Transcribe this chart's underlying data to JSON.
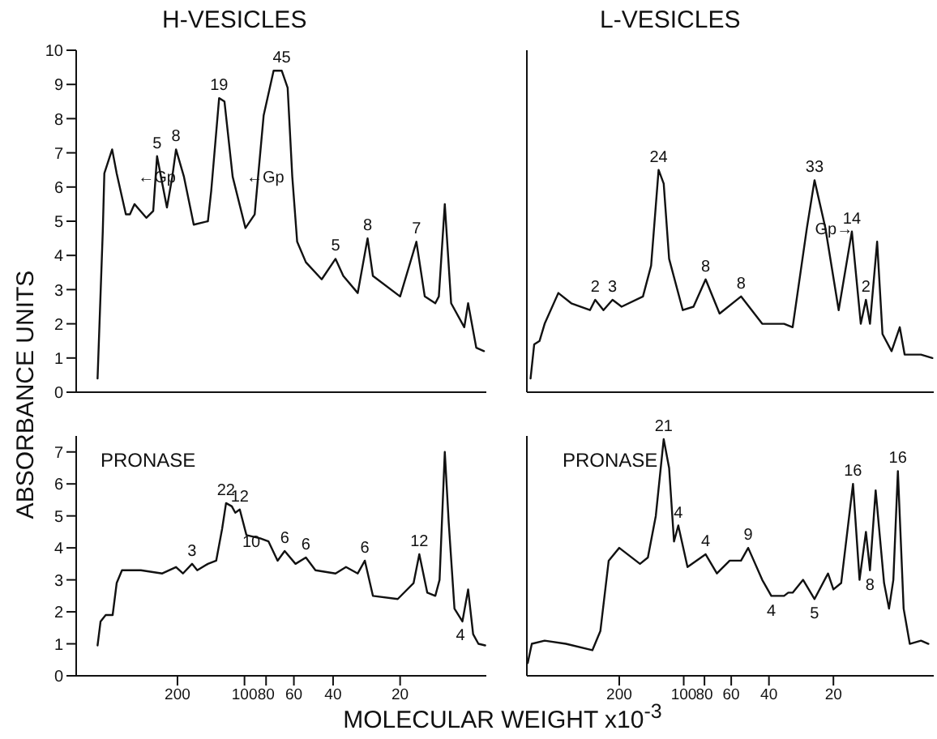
{
  "chart_data": [
    {
      "type": "line",
      "title": "H-VESICLES",
      "ylabel": "ABSORBANCE UNITS",
      "tick_labels": "y",
      "log": "x",
      "marker": "none",
      "line_style": "solid",
      "xlim": [
        570,
        8.2
      ],
      "ylim": [
        0,
        10
      ],
      "yticks": [
        0,
        1,
        2,
        3,
        4,
        5,
        6,
        7,
        8,
        9,
        10
      ],
      "xticks": [
        200,
        100,
        80,
        60,
        40,
        20
      ],
      "series": [
        {
          "color": "#111111",
          "x": [
            457,
            433,
            426,
            393,
            375,
            341,
            327,
            312,
            276,
            257,
            247,
            234,
            223,
            211,
            203,
            187,
            169,
            146,
            141,
            130,
            123,
            113,
            99,
            90,
            82,
            74,
            68,
            64,
            61,
            58,
            53,
            45,
            39,
            36,
            31,
            28,
            26.5,
            20,
            16.9,
            15.5,
            13.9,
            13.4,
            12.6,
            11.8,
            10.3,
            9.9,
            9.1,
            8.4
          ],
          "values": [
            0.4,
            4.7,
            6.4,
            7.1,
            6.4,
            5.2,
            5.2,
            5.5,
            5.1,
            5.3,
            6.9,
            6.1,
            5.4,
            6.3,
            7.1,
            6.3,
            4.9,
            5.0,
            5.9,
            8.6,
            8.5,
            6.3,
            4.8,
            5.2,
            8.1,
            9.4,
            9.4,
            8.9,
            6.3,
            4.4,
            3.8,
            3.3,
            3.9,
            3.4,
            2.9,
            4.5,
            3.4,
            2.8,
            4.4,
            2.8,
            2.6,
            2.8,
            5.5,
            2.6,
            1.9,
            2.6,
            1.3,
            1.2
          ]
        }
      ],
      "annotations": [
        {
          "text": "5",
          "x": 247,
          "y": 6.9
        },
        {
          "text": "8",
          "x": 203,
          "y": 7.1
        },
        {
          "text": "←Gp",
          "x": 187,
          "y": 6.3
        },
        {
          "text": "19",
          "x": 130,
          "y": 8.6
        },
        {
          "text": "45",
          "x": 68,
          "y": 9.4
        },
        {
          "text": "←Gp",
          "x": 61,
          "y": 6.3
        },
        {
          "text": "5",
          "x": 39,
          "y": 3.9
        },
        {
          "text": "8",
          "x": 28,
          "y": 4.5
        },
        {
          "text": "7",
          "x": 16.9,
          "y": 4.4
        }
      ]
    },
    {
      "type": "line",
      "title": "L-VESICLES",
      "tick_labels": false,
      "log": "x",
      "marker": "none",
      "line_style": "solid",
      "xlim": [
        540,
        6.8
      ],
      "ylim": [
        0,
        10
      ],
      "yticks": [
        0,
        1,
        2,
        3,
        4,
        5,
        6,
        7,
        8,
        9,
        10
      ],
      "xticks": [
        200,
        100,
        80,
        60,
        40,
        20
      ],
      "series": [
        {
          "color": "#111111",
          "x": [
            519,
            499,
            471,
            446,
            385,
            335,
            274,
            259,
            237,
            215,
            195,
            155,
            142,
            131,
            124,
            117,
            101,
            90,
            79,
            68,
            54,
            43,
            34,
            31,
            26.6,
            24.5,
            21.8,
            18.9,
            16.4,
            14.9,
            14.1,
            13.5,
            12.5,
            11.8,
            10.7,
            9.8,
            9.3,
            7.8,
            6.9
          ],
          "values": [
            0.4,
            1.4,
            1.5,
            2.0,
            2.9,
            2.6,
            2.4,
            2.7,
            2.4,
            2.7,
            2.5,
            2.8,
            3.7,
            6.5,
            6.1,
            3.9,
            2.4,
            2.5,
            3.3,
            2.3,
            2.8,
            2.0,
            2.0,
            1.9,
            4.8,
            6.2,
            4.8,
            2.4,
            4.7,
            2.0,
            2.7,
            2.0,
            4.4,
            1.7,
            1.2,
            1.9,
            1.1,
            1.1,
            1.0
          ]
        }
      ],
      "annotations": [
        {
          "text": "2",
          "x": 259,
          "y": 2.7
        },
        {
          "text": "3",
          "x": 215,
          "y": 2.7
        },
        {
          "text": "24",
          "x": 131,
          "y": 6.5
        },
        {
          "text": "8",
          "x": 79,
          "y": 3.3
        },
        {
          "text": "8",
          "x": 54,
          "y": 2.8
        },
        {
          "text": "Gp→",
          "x": 26.6,
          "y": 4.8
        },
        {
          "text": "33",
          "x": 24.5,
          "y": 6.2
        },
        {
          "text": "14",
          "x": 16.4,
          "y": 4.7
        },
        {
          "text": "2",
          "x": 14.1,
          "y": 2.7
        }
      ]
    },
    {
      "type": "line",
      "xlabel": "MOLECULAR WEIGHT x10$^{-3}$",
      "log": "x",
      "marker": "none",
      "line_style": "solid",
      "xlim": [
        570,
        8.2
      ],
      "ylim": [
        0,
        7.5
      ],
      "yticks": [
        0,
        1,
        2,
        3,
        4,
        5,
        6,
        7
      ],
      "xticks": [
        200,
        100,
        80,
        60,
        40,
        20
      ],
      "series": [
        {
          "color": "#111111",
          "x": [
            457,
            443,
            420,
            391,
            375,
            355,
            292,
            234,
            203,
            189,
            172,
            163,
            146,
            134,
            126,
            121,
            114,
            110,
            105,
            98,
            85,
            78,
            71,
            66,
            59,
            53,
            48,
            39,
            35,
            31,
            28.8,
            26.5,
            20.5,
            17.4,
            16.4,
            15.1,
            13.9,
            13.3,
            12.6,
            12.1,
            11.4,
            10.5,
            9.9,
            9.4,
            8.9,
            8.3
          ],
          "values": [
            0.95,
            1.7,
            1.9,
            1.9,
            2.9,
            3.3,
            3.3,
            3.2,
            3.4,
            3.2,
            3.5,
            3.3,
            3.5,
            3.6,
            4.6,
            5.4,
            5.3,
            5.1,
            5.2,
            4.4,
            4.3,
            4.2,
            3.6,
            3.9,
            3.5,
            3.7,
            3.3,
            3.2,
            3.4,
            3.2,
            3.6,
            2.5,
            2.4,
            2.9,
            3.8,
            2.6,
            2.5,
            3.0,
            7.0,
            4.8,
            2.1,
            1.7,
            2.7,
            1.3,
            1.0,
            0.95
          ]
        }
      ],
      "annotations": [
        "PRONASE",
        {
          "text": "22",
          "x": 121,
          "y": 5.4
        },
        {
          "text": "12",
          "x": 105,
          "y": 5.2
        },
        {
          "text": "3",
          "x": 172,
          "y": 3.5
        },
        {
          "text": "10",
          "x": 78,
          "y": 4.2
        },
        {
          "text": "6",
          "x": 66,
          "y": 3.9
        },
        {
          "text": "6",
          "x": 53,
          "y": 3.7
        },
        {
          "text": "6",
          "x": 28.8,
          "y": 3.6
        },
        {
          "text": "12",
          "x": 16.4,
          "y": 3.8
        },
        {
          "text": "4",
          "x": 9.4,
          "y": 1.3
        }
      ]
    },
    {
      "type": "line",
      "tick_labels": "x",
      "log": "x",
      "marker": "none",
      "line_style": "solid",
      "xlim": [
        540,
        6.8
      ],
      "ylim": [
        0,
        7.5
      ],
      "yticks": [
        0,
        1,
        2,
        3,
        4,
        5,
        6,
        7
      ],
      "xticks": [
        200,
        100,
        80,
        60,
        40,
        20
      ],
      "series": [
        {
          "color": "#111111",
          "x": [
            535,
            512,
            446,
            355,
            267,
            245,
            224,
            200,
            160,
            147,
            135,
            124,
            117,
            111,
            106,
            96,
            79,
            70,
            61,
            54,
            50,
            43,
            39,
            34,
            32.5,
            31,
            27.7,
            24.5,
            21.2,
            20,
            18.4,
            16.2,
            15.1,
            14.1,
            13.5,
            12.7,
            11.6,
            11.0,
            10.5,
            10.0,
            9.4,
            8.8,
            7.8,
            7.2
          ],
          "values": [
            0.4,
            1.0,
            1.1,
            1.0,
            0.8,
            1.4,
            3.6,
            4.0,
            3.5,
            3.7,
            5.0,
            7.4,
            6.5,
            4.2,
            4.7,
            3.4,
            3.8,
            3.2,
            3.6,
            3.6,
            4.0,
            3.0,
            2.5,
            2.5,
            2.6,
            2.6,
            3.0,
            2.4,
            3.2,
            2.7,
            2.9,
            6.0,
            3.0,
            4.5,
            3.3,
            5.8,
            2.9,
            2.1,
            3.0,
            6.4,
            2.1,
            1.0,
            1.1,
            1.0
          ]
        }
      ],
      "annotations": [
        "PRONASE",
        {
          "text": "21",
          "x": 124,
          "y": 7.4
        },
        {
          "text": "4",
          "x": 106,
          "y": 4.7
        },
        {
          "text": "4",
          "x": 79,
          "y": 3.8
        },
        {
          "text": "9",
          "x": 50,
          "y": 4.0
        },
        {
          "text": "4",
          "x": 39,
          "y": 2.5
        },
        {
          "text": "5",
          "x": 24.5,
          "y": 2.4
        },
        {
          "text": "16",
          "x": 16.2,
          "y": 6.0
        },
        {
          "text": "8",
          "x": 13.5,
          "y": 3.3
        },
        {
          "text": "16",
          "x": 10.0,
          "y": 6.4
        }
      ]
    }
  ]
}
